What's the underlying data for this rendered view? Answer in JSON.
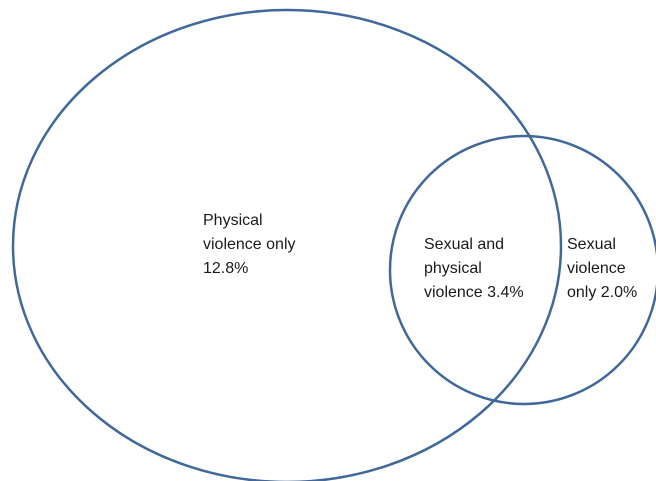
{
  "colors": {
    "outline": "#40689a",
    "text": "#1a1a1a",
    "background": "#ffffff"
  },
  "regions": {
    "physical_only": {
      "lines": [
        "Physical",
        "violence only",
        "12.8%"
      ],
      "value_percent": 12.8
    },
    "both": {
      "lines": [
        "Sexual and",
        "physical",
        "violence 3.4%"
      ],
      "value_percent": 3.4
    },
    "sexual_only": {
      "lines": [
        "Sexual",
        "violence",
        "only 2.0%"
      ],
      "value_percent": 2.0
    }
  }
}
